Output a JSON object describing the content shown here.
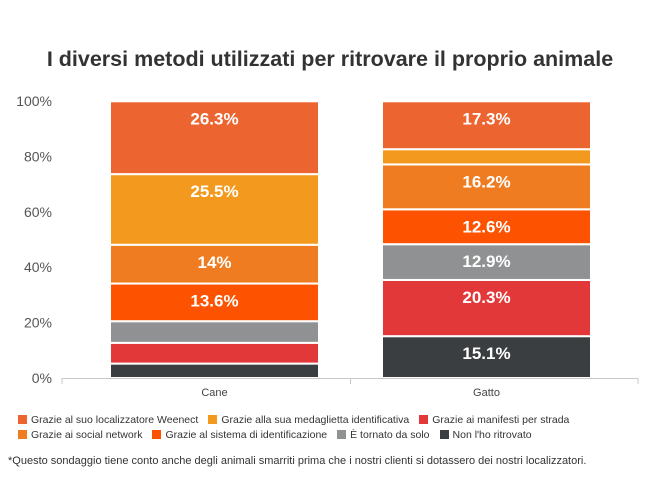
{
  "chart_data": {
    "type": "bar",
    "stacked": true,
    "percent_stacked": true,
    "title": "I diversi metodi utilizzati per ritrovare il proprio animale",
    "categories": [
      "Cane",
      "Gatto"
    ],
    "ylim": [
      0,
      100
    ],
    "y_ticks": [
      "0%",
      "20%",
      "40%",
      "60%",
      "80%",
      "100%"
    ],
    "grid": false,
    "legend_position": "bottom",
    "series": [
      {
        "name": "Non l'ho ritrovato",
        "color": "#3b3e40",
        "values": [
          5.2,
          15.1
        ],
        "labels": [
          "",
          "15.1%"
        ]
      },
      {
        "name": "Grazie ai manifesti per strada",
        "color": "#e3383a",
        "values": [
          7.5,
          20.3
        ],
        "labels": [
          "",
          "20.3%"
        ]
      },
      {
        "name": "È tornato da solo",
        "color": "#8f9193",
        "values": [
          7.8,
          12.9
        ],
        "labels": [
          "",
          "12.9%"
        ]
      },
      {
        "name": "Grazie al sistema di identificazione",
        "color": "#fd5200",
        "values": [
          13.6,
          12.6
        ],
        "labels": [
          "13.6%",
          "12.6%"
        ]
      },
      {
        "name": "Grazie ai social network",
        "color": "#ef7c20",
        "values": [
          14,
          16.2
        ],
        "labels": [
          "14%",
          "16.2%"
        ]
      },
      {
        "name": "Grazie alla sua medaglietta identificativa",
        "color": "#f39a1e",
        "values": [
          25.5,
          5.5
        ],
        "labels": [
          "25.5%",
          ""
        ]
      },
      {
        "name": "Grazie al suo localizzatore Weenect",
        "color": "#ec6531",
        "values": [
          26.3,
          17.3
        ],
        "labels": [
          "26.3%",
          "17.3%"
        ]
      }
    ],
    "legend_rows": [
      [
        "Grazie al suo localizzatore Weenect",
        "Grazie alla sua medaglietta identificativa",
        "Grazie ai manifesti per strada"
      ],
      [
        "Grazie ai social network",
        "Grazie al sistema di identificazione",
        "È tornato da solo",
        "Non l'ho ritrovato"
      ]
    ]
  },
  "footnote": "*Questo sondaggio tiene conto anche degli animali smarriti prima che i nostri clienti si dotassero dei nostri localizzatori."
}
